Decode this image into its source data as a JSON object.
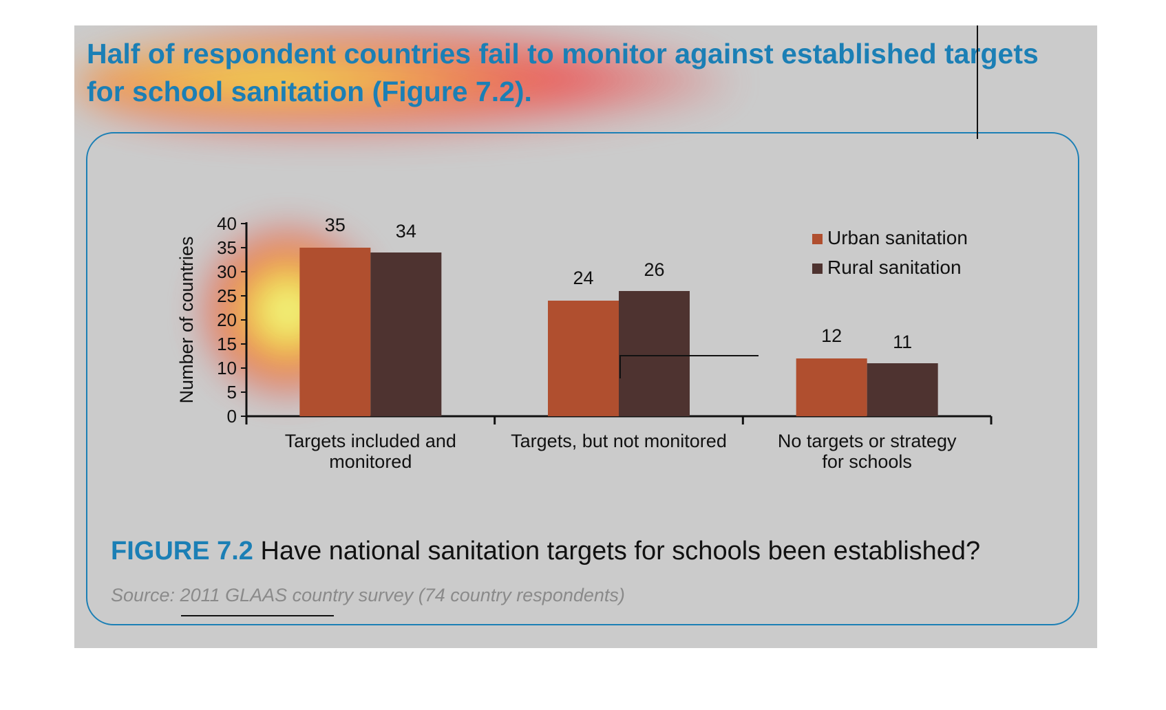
{
  "headline": "Half of respondent countries fail to monitor against established targets for school sanitation (Figure 7.2).",
  "caption": {
    "figure_label": "FIGURE 7.2",
    "text": "Have national sanitation targets for schools been established?"
  },
  "source": "Source: 2011 GLAAS country survey (74 country respondents)",
  "colors": {
    "urban": "#b04f2f",
    "rural": "#4e3330",
    "accent": "#1b7fb5"
  },
  "chart_data": {
    "type": "bar",
    "categories": [
      "Targets included and monitored",
      "Targets, but not monitored",
      "No targets or strategy for schools"
    ],
    "category_lines": [
      [
        "Targets included and",
        "monitored"
      ],
      [
        "Targets, but not monitored"
      ],
      [
        "No targets or strategy",
        "for schools"
      ]
    ],
    "series": [
      {
        "name": "Urban sanitation",
        "values": [
          35,
          24,
          12
        ]
      },
      {
        "name": "Rural sanitation",
        "values": [
          34,
          26,
          11
        ]
      }
    ],
    "ylabel": "Number of countries",
    "ylim": [
      0,
      40
    ],
    "yticks": [
      0,
      5,
      10,
      15,
      20,
      25,
      30,
      35,
      40
    ],
    "legend_position": "top-right",
    "grid": false
  }
}
